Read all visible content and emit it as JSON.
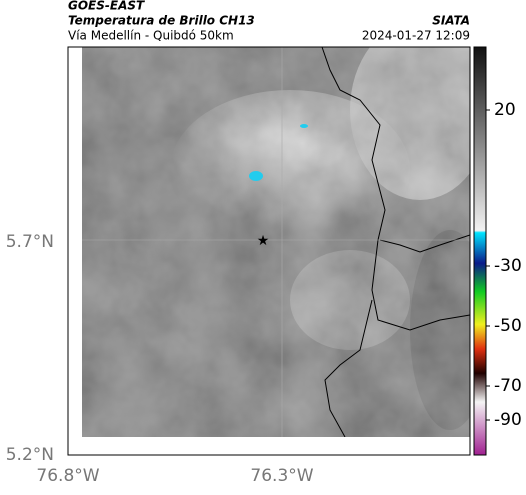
{
  "header": {
    "satellite": "GOES-EAST",
    "product": "Temperatura de Brillo CH13",
    "route": "Vía Medellín - Quibdó 50km",
    "source": "SIATA",
    "datetime": "2024-01-27 12:09"
  },
  "map": {
    "lat_labels": [
      "5.7°N",
      "5.2°N"
    ],
    "lon_labels": [
      "76.8°W",
      "76.3°W"
    ]
  },
  "colorbar": {
    "ticks": [
      "20",
      "-30",
      "-50",
      "-70",
      "-90"
    ]
  }
}
